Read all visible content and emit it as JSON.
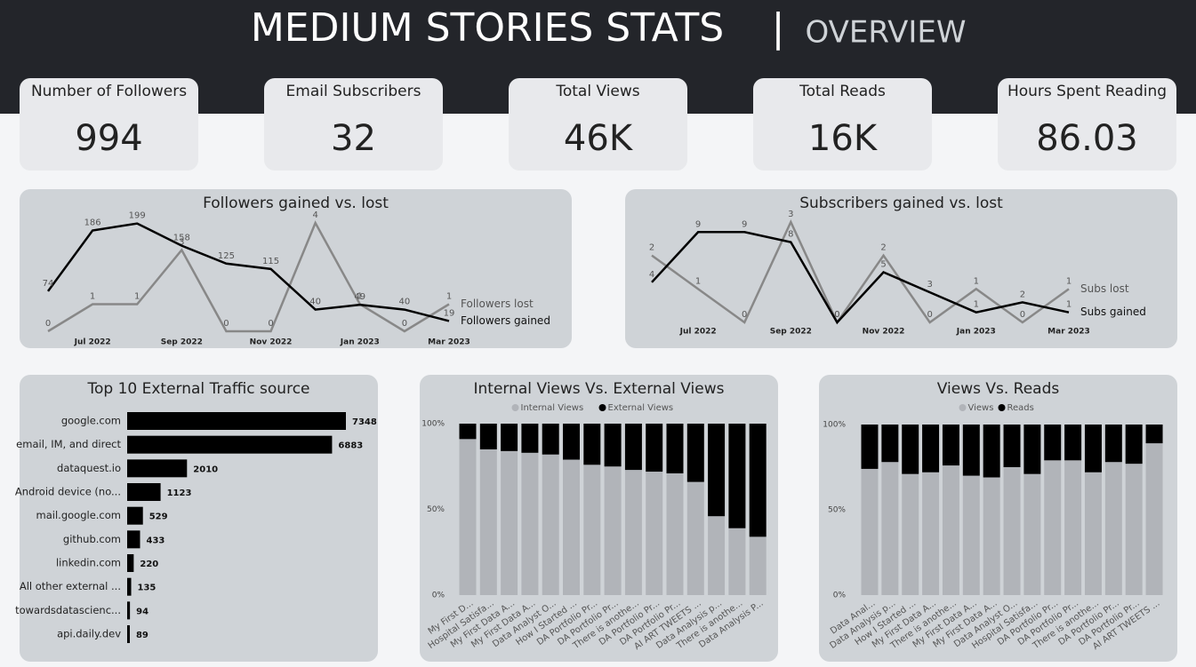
{
  "header": {
    "title": "MEDIUM STORIES STATS",
    "separator": "|",
    "subtitle": "OVERVIEW"
  },
  "kpis": [
    {
      "label": "Number of Followers",
      "value": 994
    },
    {
      "label": "Email Subscribers",
      "value": 32
    },
    {
      "label": "Total Views",
      "value": 46000,
      "value_label": "46K"
    },
    {
      "label": "Total Reads",
      "value": 16000,
      "value_label": "16K"
    },
    {
      "label": "Hours Spent Reading",
      "value": 86.03
    }
  ],
  "chart_data": [
    {
      "type": "line",
      "title": "Followers gained vs. lost",
      "categories": [
        null,
        "Jul 2022",
        null,
        "Sep 2022",
        null,
        "Nov 2022",
        null,
        "Jan 2023",
        null,
        "Mar 2023"
      ],
      "ylim": [
        0,
        200
      ],
      "y2lim": [
        0,
        4
      ],
      "series": [
        {
          "name": "Followers lost",
          "color": "#888888",
          "axis": "y2",
          "values": [
            0,
            1,
            1,
            3,
            0,
            0,
            4,
            1,
            0,
            1
          ]
        },
        {
          "name": "Followers gained",
          "color": "#000000",
          "values": [
            74,
            186,
            199,
            158,
            125,
            115,
            40,
            49,
            40,
            19
          ]
        }
      ]
    },
    {
      "type": "line",
      "title": "Subscribers gained vs. lost",
      "categories": [
        null,
        "Jul 2022",
        null,
        "Sep 2022",
        null,
        "Nov 2022",
        null,
        "Jan 2023",
        null,
        "Mar 2023"
      ],
      "ylim": [
        0,
        10
      ],
      "y2lim": [
        0,
        3
      ],
      "series": [
        {
          "name": "Subs lost",
          "color": "#888888",
          "axis": "y2",
          "values": [
            2,
            1,
            0,
            3,
            0,
            2,
            0,
            1,
            0,
            1
          ]
        },
        {
          "name": "Subs gained",
          "color": "#000000",
          "values": [
            4,
            9,
            9,
            8,
            0,
            5,
            3,
            1,
            2,
            1
          ]
        }
      ]
    },
    {
      "type": "hbar",
      "title": "Top 10 External Traffic source",
      "categories": [
        "google.com",
        "email, IM, and direct",
        "dataquest.io",
        "Android device (no...",
        "mail.google.com",
        "github.com",
        "linkedin.com",
        "All other external ...",
        "towardsdatascienc...",
        "api.daily.dev"
      ],
      "values": [
        7348,
        6883,
        2010,
        1123,
        529,
        433,
        220,
        135,
        94,
        89
      ],
      "color": "#000000",
      "xlim": [
        0,
        7348
      ]
    },
    {
      "type": "stacked_bar",
      "title": "Internal Views Vs. External Views",
      "categories": [
        "My First D...",
        "Hospital Satisfa...",
        "My First Data A...",
        "My First Data A...",
        "Data Analyst O...",
        "How I Started ...",
        "DA Portfolio Pr...",
        "DA Portfolio Pr...",
        "There is anothe...",
        "DA Portfolio Pr...",
        "DA Portfolio Pr...",
        "AI ART TWEETS ...",
        "Data Analysis p...",
        "There is anothe...",
        "Data Analysis P..."
      ],
      "ylim": [
        0,
        100
      ],
      "yticks": [
        {
          "value": 0,
          "label": "0%"
        },
        {
          "value": 50,
          "label": "50%"
        },
        {
          "value": 100,
          "label": "100%"
        }
      ],
      "series": [
        {
          "name": "Internal Views",
          "color": "#b1b4b9",
          "values": [
            91,
            85,
            84,
            83,
            82,
            79,
            76,
            75,
            73,
            72,
            71,
            66,
            46,
            39,
            34
          ]
        },
        {
          "name": "External Views",
          "color": "#000000",
          "values": [
            9,
            15,
            16,
            17,
            18,
            21,
            24,
            25,
            27,
            28,
            29,
            34,
            54,
            61,
            66
          ]
        }
      ]
    },
    {
      "type": "stacked_bar",
      "title": "Views Vs. Reads",
      "categories": [
        "Data Anal...",
        "Data Analysis p...",
        "How I Started ...",
        "My First Data A...",
        "There is anothe...",
        "My First Data A...",
        "My First Data A...",
        "Data Analyst O...",
        "Hospital Satisfa...",
        "DA Portfolio Pr...",
        "DA Portfolio Pr...",
        "There is anothe...",
        "DA Portfolio Pr...",
        "DA Portfolio Pr...",
        "AI ART TWEETS ..."
      ],
      "ylim": [
        0,
        100
      ],
      "yticks": [
        {
          "value": 0,
          "label": "0%"
        },
        {
          "value": 50,
          "label": "50%"
        },
        {
          "value": 100,
          "label": "100%"
        }
      ],
      "series": [
        {
          "name": "Views",
          "color": "#b1b4b9",
          "values": [
            74,
            78,
            71,
            72,
            76,
            70,
            69,
            75,
            71,
            79,
            79,
            72,
            78,
            77,
            89
          ]
        },
        {
          "name": "Reads",
          "color": "#000000",
          "values": [
            26,
            22,
            29,
            28,
            24,
            30,
            31,
            25,
            29,
            21,
            21,
            28,
            22,
            23,
            11
          ]
        }
      ]
    }
  ]
}
